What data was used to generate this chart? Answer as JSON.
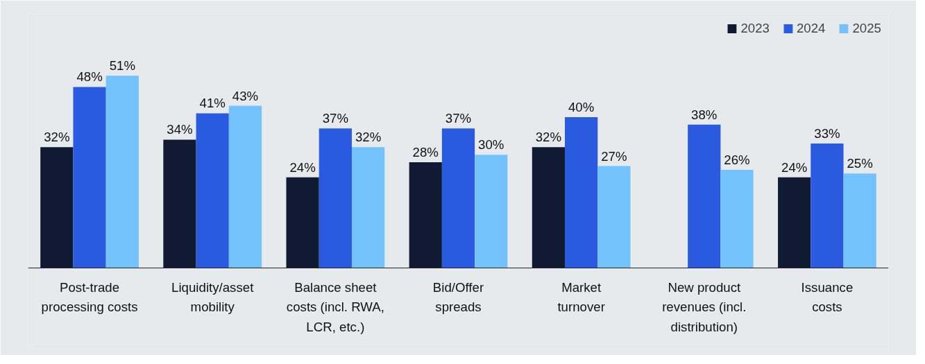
{
  "chart_data": {
    "type": "bar",
    "categories": [
      "Post-trade\nprocessing costs",
      "Liquidity/asset\nmobility",
      "Balance sheet\ncosts (incl. RWA,\nLCR, etc.)",
      "Bid/Offer\nspreads",
      "Market\nturnover",
      "New product\nrevenues (incl.\ndistribution)",
      "Issuance\ncosts"
    ],
    "series": [
      {
        "name": "2023",
        "color": "#111a33",
        "values": [
          32,
          34,
          24,
          28,
          32,
          null,
          24
        ],
        "value_labels": [
          "32%",
          "34%",
          "24%",
          "28%",
          "32%",
          null,
          "24%"
        ]
      },
      {
        "name": "2024",
        "color": "#2a5ae0",
        "values": [
          48,
          41,
          37,
          37,
          40,
          38,
          33
        ],
        "value_labels": [
          "48%",
          "41%",
          "37%",
          "37%",
          "40%",
          "38%",
          "33%"
        ]
      },
      {
        "name": "2025",
        "color": "#73c2fb",
        "values": [
          51,
          43,
          32,
          30,
          27,
          26,
          25
        ],
        "value_labels": [
          "51%",
          "43%",
          "32%",
          "30%",
          "27%",
          "26%",
          "25%"
        ]
      }
    ],
    "legend": "top right",
    "grid": false
  }
}
